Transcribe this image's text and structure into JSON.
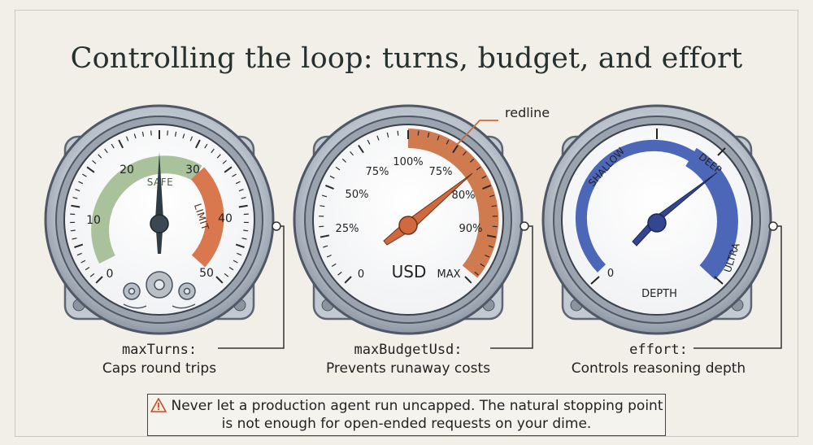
{
  "title": "Controlling the loop: turns, budget, and effort",
  "colors": {
    "background": "#f1efe8",
    "safe_green": "#a9c29c",
    "limit_orange": "#d9774f",
    "budget_orange": "#d07a4f",
    "effort_blue": "#4d67b8",
    "needle_dark": "#2f3c45",
    "needle_orange": "#cf6a3f",
    "needle_blue": "#34468f"
  },
  "gauges": {
    "turns": {
      "ticks": [
        "0",
        "10",
        "20",
        "30",
        "40",
        "50"
      ],
      "safe_label": "SAFE",
      "limit_label": "LIMIT",
      "icons": [
        "gears-icon"
      ]
    },
    "budget": {
      "ticks_left": [
        "0",
        "25%",
        "50%",
        "75%",
        "100%"
      ],
      "ticks_right": [
        "75%",
        "80%",
        "90%"
      ],
      "unit_label": "USD",
      "max_label": "MAX",
      "redline_label": "redline"
    },
    "effort": {
      "zero_label": "0",
      "shallow_label": "SHALLOW",
      "deep_label": "DEEP",
      "ultra_label": "ULTRA",
      "depth_label": "DEPTH"
    }
  },
  "captions": [
    {
      "param": "maxTurns:",
      "desc": "Caps round trips"
    },
    {
      "param": "maxBudgetUsd:",
      "desc": "Prevents runaway costs"
    },
    {
      "param": "effort:",
      "desc": "Controls reasoning depth"
    }
  ],
  "callout": {
    "icon": "warning-icon",
    "line1": "Never let a production agent run uncapped. The natural stopping point",
    "line2": "is not enough for open-ended requests on your dime."
  }
}
